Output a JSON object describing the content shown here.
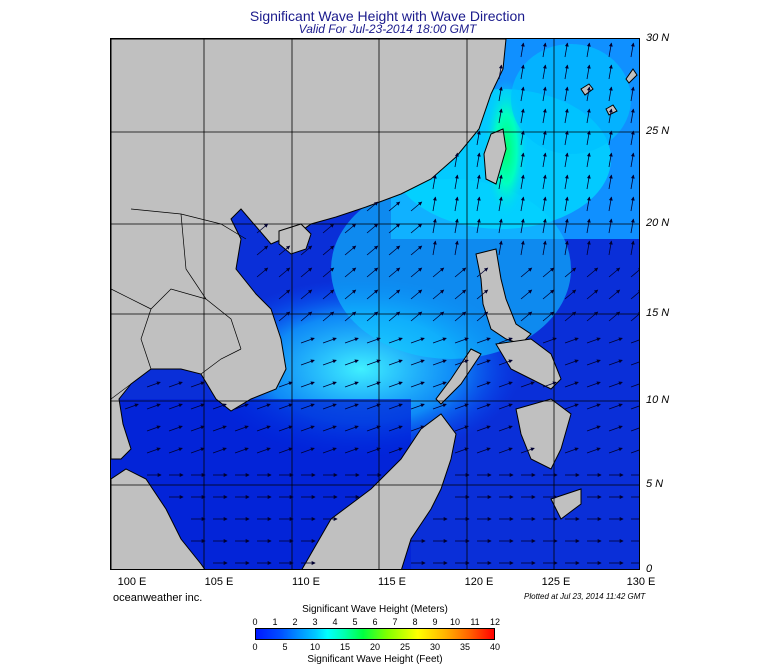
{
  "title": "Significant Wave Height with Wave Direction",
  "subtitle": "Valid For Jul-23-2014 18:00 GMT",
  "credit": "oceanweather inc.",
  "plot_stamp": "Plotted at Jul 23, 2014 11:42 GMT",
  "lat_labels": [
    "30 N",
    "25 N",
    "20 N",
    "15 N",
    "10 N",
    "5 N",
    "0"
  ],
  "lon_labels": [
    "100 E",
    "105 E",
    "110 E",
    "115 E",
    "120 E",
    "125 E",
    "130 E"
  ],
  "legend": {
    "title_meters": "Significant Wave Height (Meters)",
    "title_feet": "Significant Wave Height (Feet)",
    "ticks_meters": [
      "0",
      "1",
      "2",
      "3",
      "4",
      "5",
      "6",
      "7",
      "8",
      "9",
      "10",
      "11",
      "12"
    ],
    "ticks_feet": [
      "0",
      "5",
      "10",
      "15",
      "20",
      "25",
      "30",
      "35",
      "40"
    ]
  },
  "colors": {
    "land": "#c0c0c0",
    "low_wave": "#0a28d8",
    "mid_wave": "#00d8ff",
    "high_wave": "#00ff60",
    "grid": "#000000",
    "title": "#1a1a8c"
  }
}
